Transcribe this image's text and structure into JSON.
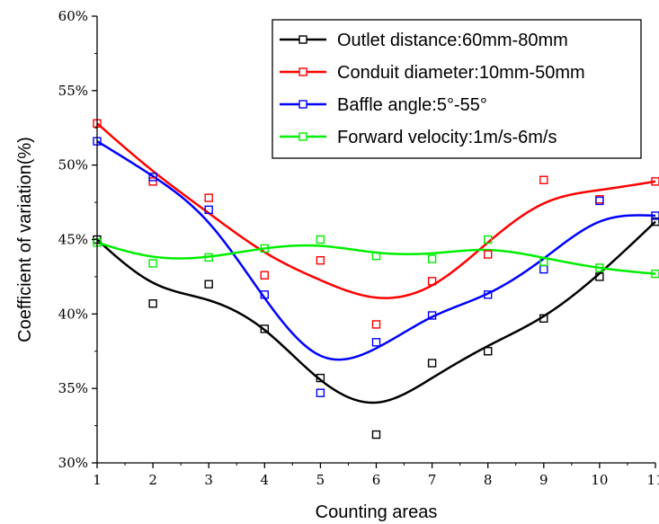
{
  "chart_data": {
    "type": "scatter",
    "title": "",
    "xlabel": "Counting areas",
    "ylabel": "Coefficient of variation(%)",
    "x": [
      1,
      2,
      3,
      4,
      5,
      6,
      7,
      8,
      9,
      10,
      11
    ],
    "x_ticks": [
      "1",
      "2",
      "3",
      "4",
      "5",
      "6",
      "7",
      "8",
      "9",
      "10",
      "11"
    ],
    "xlim": [
      1,
      11
    ],
    "ylim": [
      30,
      60
    ],
    "y_ticks": [
      30,
      35,
      40,
      45,
      50,
      55,
      60
    ],
    "y_tick_labels": [
      "30%",
      "35%",
      "40%",
      "45%",
      "50%",
      "55%",
      "60%"
    ],
    "grid": false,
    "legend_position": "top-right",
    "series": [
      {
        "name": "Outlet distance:60mm-80mm",
        "color": "#000000",
        "marker": "open-square",
        "fit": "smooth-curve",
        "values": [
          45.0,
          40.7,
          42.0,
          39.0,
          35.7,
          31.9,
          36.7,
          37.5,
          39.7,
          42.5,
          46.2
        ]
      },
      {
        "name": "Conduit diameter:10mm-50mm",
        "color": "#ff0000",
        "marker": "open-square",
        "fit": "smooth-curve",
        "values": [
          52.8,
          48.9,
          47.8,
          42.6,
          43.6,
          39.3,
          42.2,
          44.0,
          49.0,
          47.7,
          48.9
        ]
      },
      {
        "name": "Baffle angle:5°-55°",
        "color": "#0000ff",
        "marker": "open-square",
        "fit": "smooth-curve",
        "values": [
          51.6,
          49.2,
          47.0,
          41.3,
          34.7,
          38.1,
          39.9,
          41.3,
          43.0,
          47.6,
          46.6
        ]
      },
      {
        "name": "Forward velocity:1m/s-6m/s",
        "color": "#00ee00",
        "marker": "open-square",
        "fit": "smooth-curve",
        "values": [
          44.8,
          43.4,
          43.8,
          44.4,
          45.0,
          43.9,
          43.7,
          45.0,
          43.5,
          43.1,
          42.7
        ]
      }
    ]
  }
}
